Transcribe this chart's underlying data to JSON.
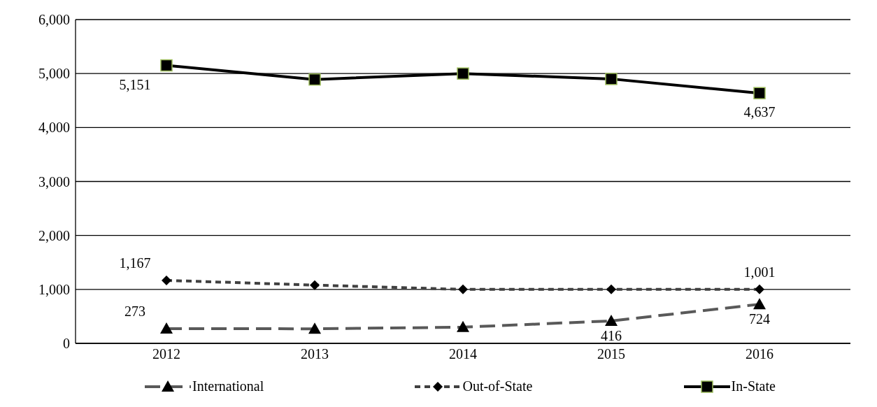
{
  "chart_data": {
    "type": "line",
    "categories": [
      "2012",
      "2013",
      "2014",
      "2015",
      "2016"
    ],
    "series": [
      {
        "name": "International",
        "color": "#595959",
        "marker": "triangle",
        "line_style": "dashed",
        "values": [
          273,
          270,
          300,
          416,
          724
        ],
        "value_labels": [
          "273",
          null,
          null,
          "416",
          "724"
        ]
      },
      {
        "name": "Out-of-State",
        "color": "#404040",
        "marker": "diamond",
        "line_style": "dotted",
        "values": [
          1167,
          1080,
          1000,
          1000,
          1001
        ],
        "value_labels": [
          "1,167",
          null,
          null,
          null,
          "1,001"
        ]
      },
      {
        "name": "In-State",
        "color": "#000000",
        "marker": "square",
        "line_style": "solid",
        "values": [
          5151,
          4890,
          5000,
          4900,
          4637
        ],
        "value_labels": [
          "5,151",
          null,
          null,
          null,
          "4,637"
        ]
      }
    ],
    "ylim": [
      0,
      6000
    ],
    "yticks": [
      {
        "value": 0,
        "label": "0"
      },
      {
        "value": 1000,
        "label": "1,000"
      },
      {
        "value": 2000,
        "label": "2,000"
      },
      {
        "value": 3000,
        "label": "3,000"
      },
      {
        "value": 4000,
        "label": "4,000"
      },
      {
        "value": 5000,
        "label": "5,000"
      },
      {
        "value": 6000,
        "label": "6,000"
      }
    ],
    "grid": "y",
    "legend": "bottom"
  }
}
